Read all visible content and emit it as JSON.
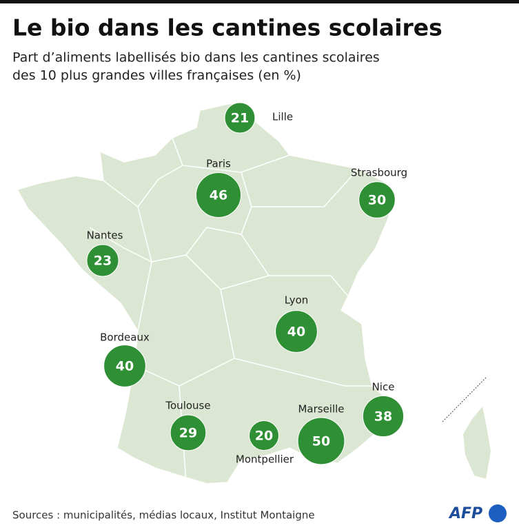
{
  "header": {
    "title": "Le bio dans les cantines scolaires",
    "subtitle": [
      "Part d’aliments labellisés bio dans les cantines scolaires",
      "des 10 plus grandes villes françaises (en %)"
    ]
  },
  "map": {
    "cities": [
      {
        "name": "Lille",
        "value": 21
      },
      {
        "name": "Paris",
        "value": 46
      },
      {
        "name": "Strasbourg",
        "value": 30
      },
      {
        "name": "Nantes",
        "value": 23
      },
      {
        "name": "Lyon",
        "value": 40
      },
      {
        "name": "Bordeaux",
        "value": 40
      },
      {
        "name": "Toulouse",
        "value": 29
      },
      {
        "name": "Montpellier",
        "value": 20
      },
      {
        "name": "Marseille",
        "value": 50
      },
      {
        "name": "Nice",
        "value": 38
      }
    ]
  },
  "footer": {
    "source": "Sources : municipalités, médias locaux, Institut Montaigne",
    "logo": "AFP"
  }
}
